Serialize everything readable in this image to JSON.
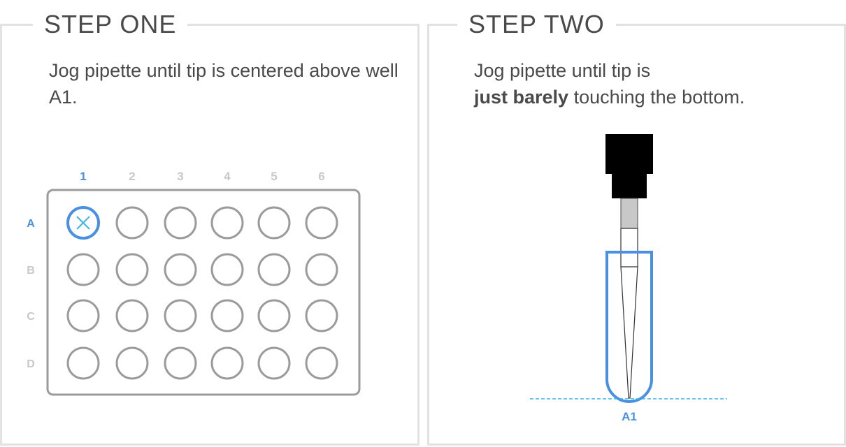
{
  "step_one": {
    "title": "STEP ONE",
    "instruction": "Jog pipette until tip is centered above well A1."
  },
  "step_two": {
    "title": "STEP TWO",
    "instruction_line1": "Jog pipette until tip is",
    "instruction_bold": "just barely",
    "instruction_rest": " touching the bottom.",
    "well_label": "A1"
  },
  "plate": {
    "columns": [
      "1",
      "2",
      "3",
      "4",
      "5",
      "6"
    ],
    "rows": [
      "A",
      "B",
      "C",
      "D"
    ],
    "highlighted_well": "A1"
  },
  "colors": {
    "accent": "#4a90e2",
    "target": "#3ab5e6",
    "muted_label": "#c8c8c8",
    "well": "#9b9b9b"
  },
  "icons": {
    "target_marker": "x-icon"
  }
}
